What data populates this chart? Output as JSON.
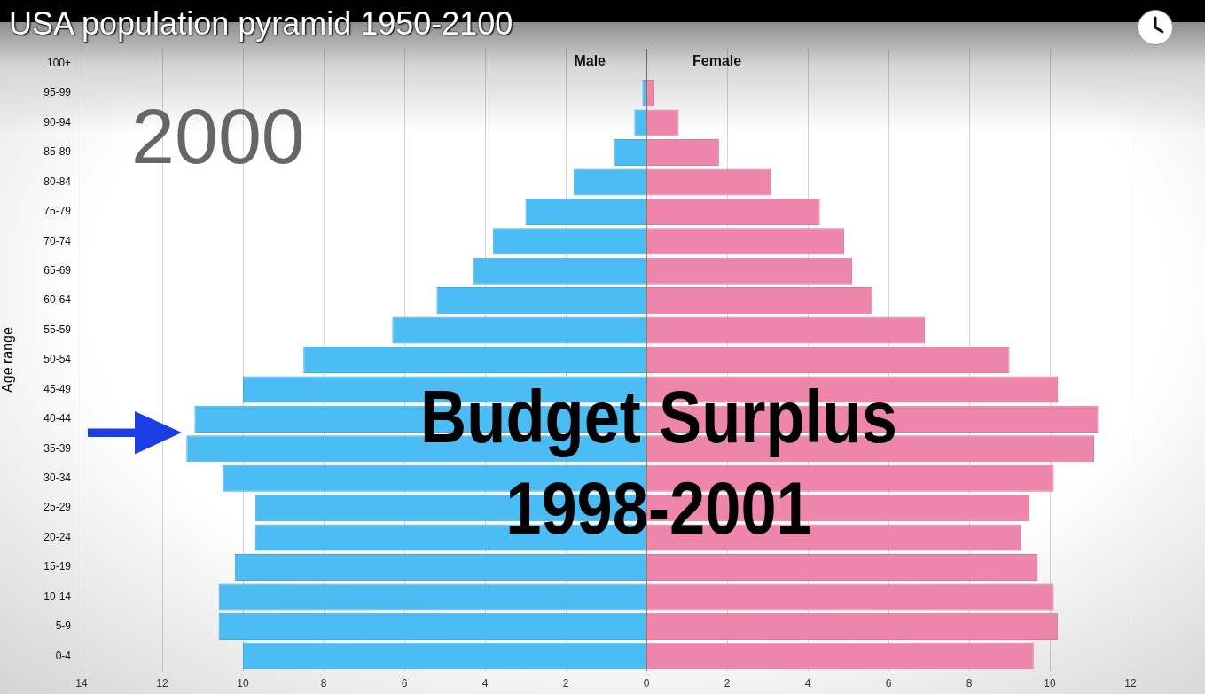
{
  "chart_data": {
    "type": "bar",
    "orientation": "horizontal",
    "stacked": true,
    "title": "USA population pyramid 1950-2100",
    "ylabel": "Age range",
    "categories": [
      "100+",
      "95-99",
      "90-94",
      "85-89",
      "80-84",
      "75-79",
      "70-74",
      "65-69",
      "60-64",
      "55-59",
      "50-54",
      "45-49",
      "40-44",
      "35-39",
      "30-34",
      "25-29",
      "20-24",
      "15-19",
      "10-14",
      "5-9",
      "0-4"
    ],
    "series": [
      {
        "name": "Male",
        "color": "#4bbcf4",
        "values": [
          null,
          -0.1,
          -0.3,
          -0.8,
          -1.8,
          -3.0,
          -3.8,
          -4.3,
          -5.2,
          -6.3,
          -8.5,
          -10.0,
          -11.2,
          -11.4,
          -10.5,
          -9.7,
          -9.7,
          -10.2,
          -10.6,
          -10.6,
          -10.0
        ]
      },
      {
        "name": "Female",
        "color": "#ee86ab",
        "values": [
          null,
          0.2,
          0.8,
          1.8,
          3.1,
          4.3,
          4.9,
          5.1,
          5.6,
          6.9,
          9.0,
          10.2,
          11.2,
          11.1,
          10.1,
          9.5,
          9.3,
          9.7,
          10.1,
          10.2,
          9.6
        ]
      }
    ],
    "xlim": [
      -14,
      12
    ],
    "xticks": [
      {
        "value": -14,
        "label": "14"
      },
      {
        "value": -12,
        "label": "12"
      },
      {
        "value": -10,
        "label": "10"
      },
      {
        "value": -8,
        "label": "8"
      },
      {
        "value": -6,
        "label": "6"
      },
      {
        "value": -4,
        "label": "4"
      },
      {
        "value": -2,
        "label": "2"
      },
      0,
      2,
      4,
      6,
      8,
      10,
      12
    ],
    "grid": "x",
    "annotations": [
      "2000",
      "Budget Surplus 1998-2001"
    ]
  }
}
